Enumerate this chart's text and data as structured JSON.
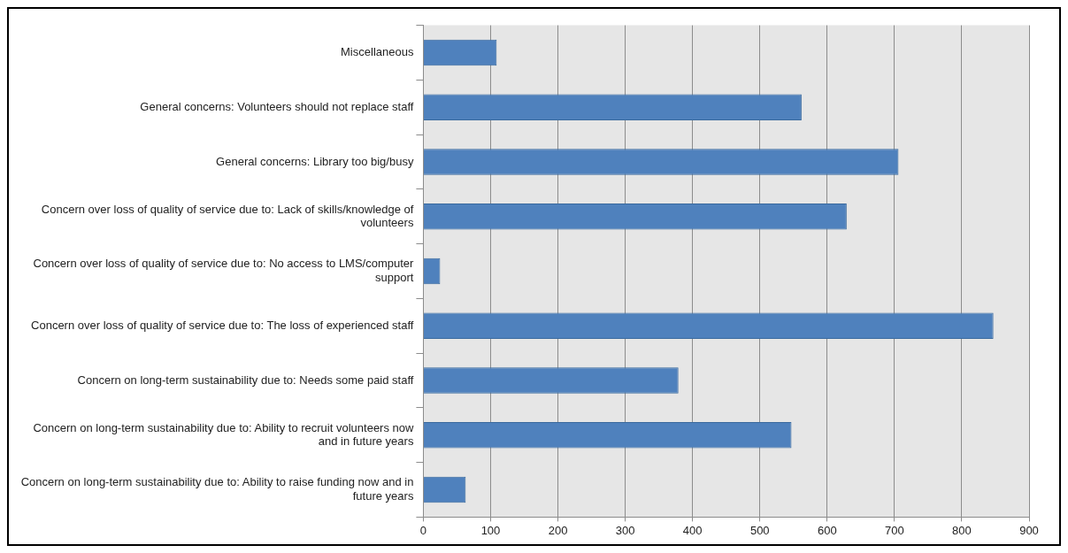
{
  "chart_data": {
    "type": "bar",
    "orientation": "horizontal",
    "categories": [
      "Miscellaneous",
      "General concerns: Volunteers should not replace staff",
      "General concerns: Library too big/busy",
      "Concern over loss of quality of service due to: Lack of skills/knowledge of volunteers",
      "Concern over loss of quality of service due to: No access to LMS/computer support",
      "Concern over loss of quality of service due to: The loss of experienced staff",
      "Concern on long-term sustainability due to: Needs some paid staff",
      "Concern on long-term sustainability due to: Ability to recruit volunteers now and in future years",
      "Concern on long-term sustainability due to: Ability to raise funding now and in future years"
    ],
    "values": [
      109,
      562,
      706,
      629,
      25,
      847,
      379,
      547,
      63
    ],
    "color": "#4f81bd",
    "xlim": [
      0,
      900
    ],
    "xticks": [
      0,
      100,
      200,
      300,
      400,
      500,
      600,
      700,
      800,
      900
    ],
    "grid": "x",
    "legend": false
  }
}
